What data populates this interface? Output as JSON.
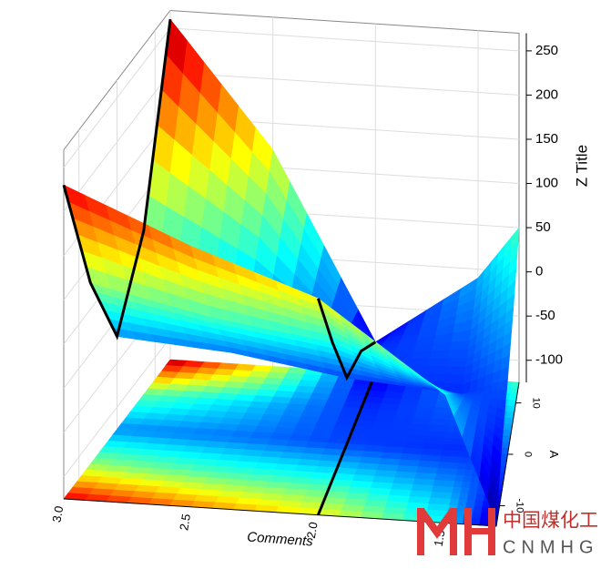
{
  "chart_data": {
    "type": "surface",
    "xlabel": "Comments",
    "ylabel": "A",
    "zlabel": "Z Title",
    "x": [
      3.0,
      2.5,
      2.0,
      1.5,
      1.3
    ],
    "y": [
      -14,
      -7,
      0,
      7,
      14
    ],
    "z": [
      [
        230,
        80,
        -20,
        60,
        260
      ],
      [
        170,
        50,
        -30,
        10,
        120
      ],
      [
        120,
        30,
        -50,
        -60,
        -90
      ],
      [
        20,
        -20,
        -60,
        -40,
        -10
      ],
      [
        -120,
        -70,
        -40,
        0,
        50
      ]
    ],
    "xlim": [
      3.0,
      1.3
    ],
    "ylim": [
      -14,
      14
    ],
    "zlim": [
      -125,
      270
    ],
    "xticks": [
      {
        "value": 3.0,
        "label": "3.0"
      },
      2.5,
      {
        "value": 2.0,
        "label": "2.0"
      },
      1.5
    ],
    "yticks": [
      -10,
      0,
      10
    ],
    "zticks": [
      -100,
      -50,
      0,
      50,
      100,
      150,
      200,
      250
    ],
    "colormap": "jet",
    "grid": true
  },
  "watermark": {
    "text": "中国煤化工",
    "code": "CNMHG"
  }
}
